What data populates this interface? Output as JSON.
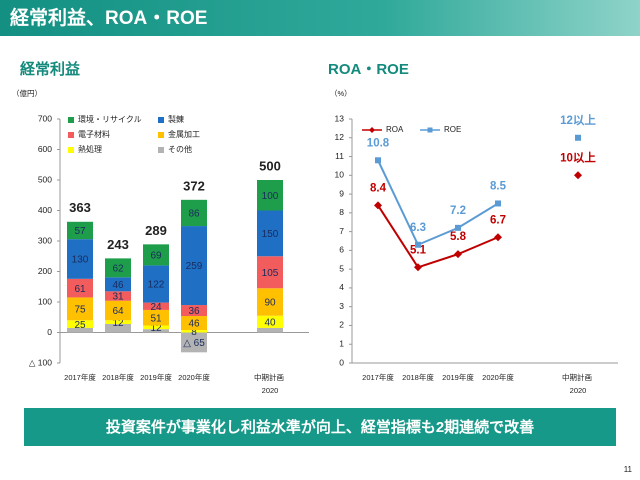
{
  "header": {
    "title": "経常利益、ROA・ROE"
  },
  "chart_data": [
    {
      "type": "bar",
      "stacked": true,
      "title": "経常利益",
      "y_label": "（億円）",
      "categories": [
        "2017年度",
        "2018年度",
        "2019年度",
        "2020年度",
        null,
        "中期計画 2020"
      ],
      "series": [
        {
          "name": "環境・リサイクル",
          "color": "#1e9e4a",
          "values": [
            57,
            62,
            69,
            86,
            null,
            100
          ]
        },
        {
          "name": "製錬",
          "color": "#1f6fc5",
          "values": [
            130,
            46,
            122,
            259,
            null,
            150
          ]
        },
        {
          "name": "電子材料",
          "color": "#f25c5c",
          "values": [
            61,
            31,
            24,
            36,
            null,
            105
          ]
        },
        {
          "name": "金属加工",
          "color": "#ffc000",
          "values": [
            75,
            64,
            51,
            46,
            null,
            90
          ]
        },
        {
          "name": "熱処理",
          "color": "#ffff00",
          "values": [
            25,
            12,
            12,
            8,
            null,
            40
          ]
        },
        {
          "name": "その他",
          "color": "#b3b3b3",
          "values": [
            15,
            28,
            11,
            -65,
            null,
            15
          ],
          "value_labels": [
            null,
            null,
            null,
            "△ 65",
            null,
            null
          ]
        }
      ],
      "totals": [
        363,
        243,
        289,
        372,
        null,
        500
      ],
      "ylim": [
        -100,
        700
      ],
      "yticks": [
        {
          "value": -100,
          "label": "△ 100"
        },
        0,
        100,
        200,
        300,
        400,
        500,
        600,
        700
      ],
      "grid": false
    },
    {
      "type": "line",
      "title": "ROA・ROE",
      "y_label": "（%）",
      "categories": [
        "2017年度",
        "2018年度",
        "2019年度",
        "2020年度",
        null,
        "中期計画 2020"
      ],
      "series": [
        {
          "name": "ROA",
          "color": "#c00000",
          "marker": "diamond",
          "values": [
            8.4,
            5.1,
            5.8,
            6.7,
            null,
            10
          ],
          "value_labels": [
            "8.4",
            "5.1",
            "5.8",
            "6.7",
            null,
            "10以上"
          ]
        },
        {
          "name": "ROE",
          "color": "#5b9bd5",
          "marker": "square",
          "values": [
            10.8,
            6.3,
            7.2,
            8.5,
            null,
            12
          ],
          "value_labels": [
            "10.8",
            "6.3",
            "7.2",
            "8.5",
            null,
            "12以上"
          ]
        }
      ],
      "ylim": [
        0,
        13
      ],
      "yticks": [
        0,
        1,
        2,
        3,
        4,
        5,
        6,
        7,
        8,
        9,
        10,
        11,
        12,
        13
      ],
      "grid": false
    }
  ],
  "banner": "投資案件が事業化し利益水準が向上、経営指標も2期連続で改善",
  "page_number": "11"
}
